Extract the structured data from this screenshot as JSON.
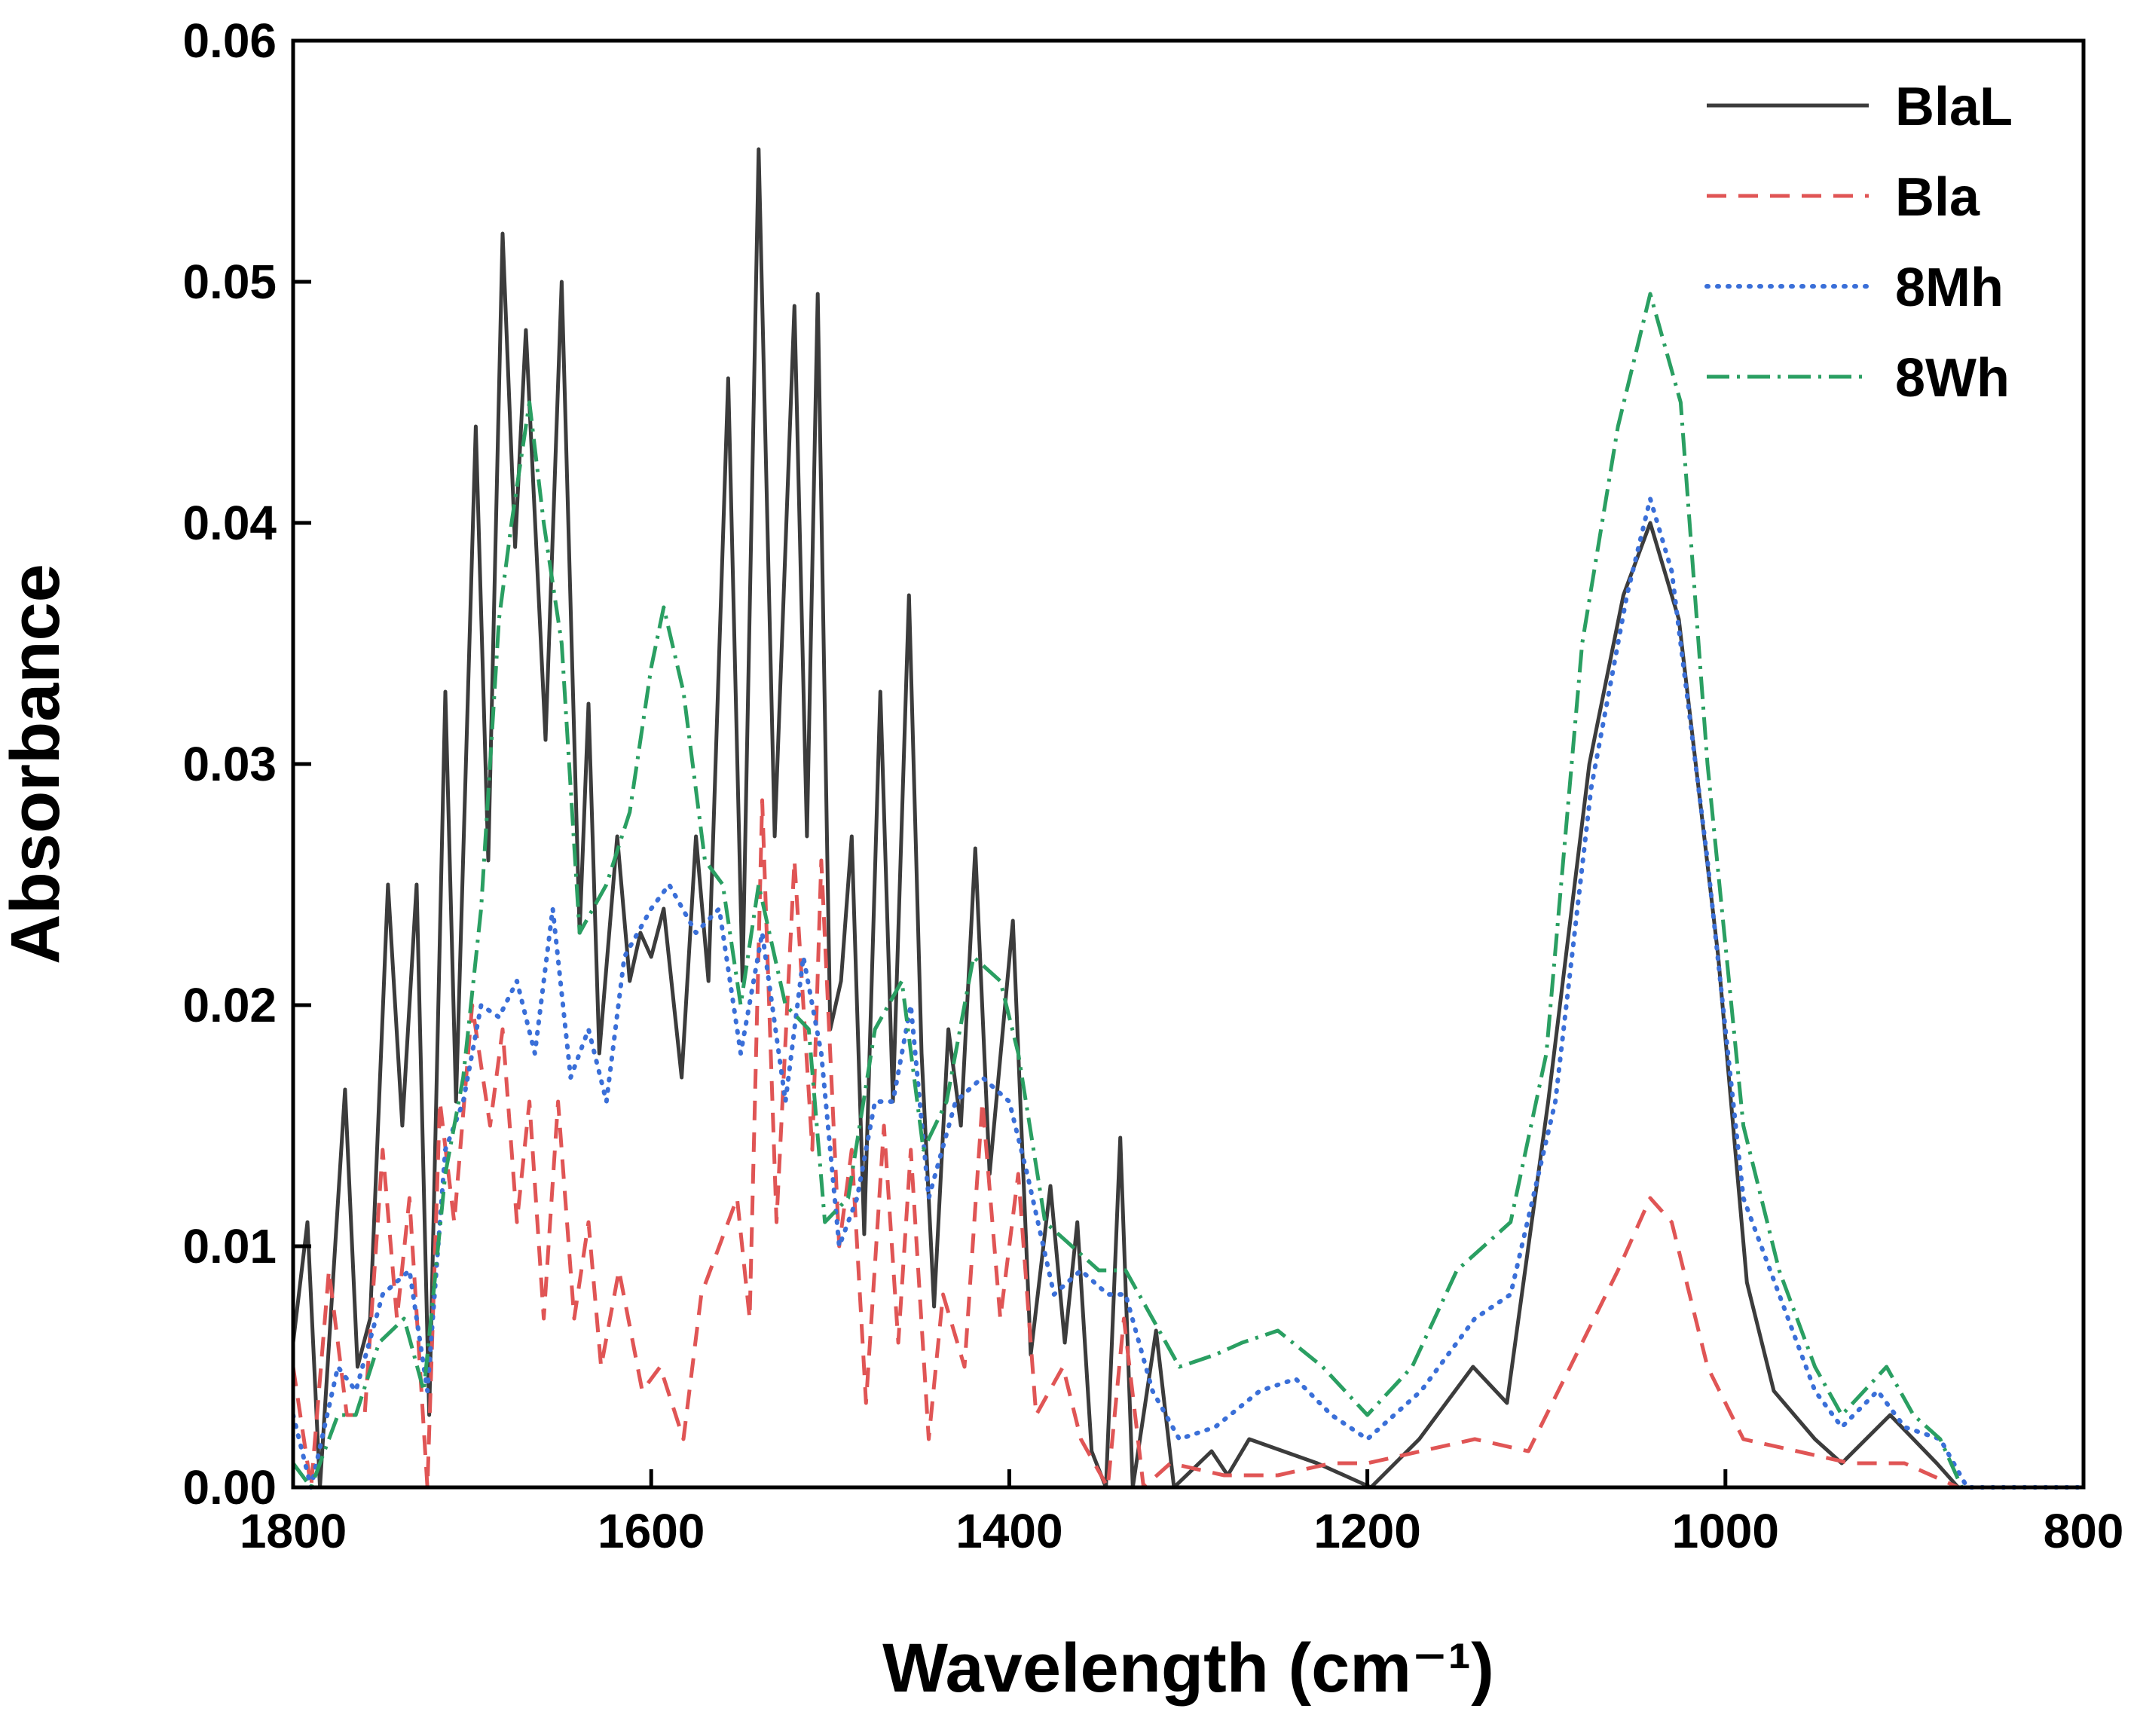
{
  "chart_data": {
    "type": "line",
    "x_label": "Wavelength (cm⁻¹)",
    "y_label": "Absorbance",
    "xlim": [
      1800,
      800
    ],
    "xticks": [
      1800,
      1600,
      1400,
      1200,
      1000,
      800
    ],
    "ylim": [
      0,
      0.06
    ],
    "yticks": [
      {
        "value": 0,
        "label": "0.00"
      },
      0.01,
      0.02,
      0.03,
      0.04,
      0.05,
      0.06
    ],
    "legend": "upper right",
    "series": [
      {
        "name": "BlaL",
        "color": "#3c3c3c",
        "dash": "solid",
        "x": [
          1800,
          1792,
          1785,
          1771,
          1764,
          1757,
          1747,
          1739,
          1731,
          1724,
          1715,
          1709,
          1698,
          1691,
          1683,
          1676,
          1670,
          1659,
          1650,
          1640,
          1635,
          1629,
          1619,
          1612,
          1606,
          1600,
          1593,
          1583,
          1575,
          1568,
          1557,
          1549,
          1540,
          1531,
          1520,
          1513,
          1507,
          1500,
          1494,
          1488,
          1481,
          1472,
          1465,
          1456,
          1449,
          1442,
          1434,
          1427,
          1419,
          1411,
          1398,
          1388,
          1377,
          1369,
          1362,
          1354,
          1346,
          1338,
          1331,
          1318,
          1308,
          1287,
          1278,
          1266,
          1247,
          1228,
          1198,
          1171,
          1141,
          1122,
          1099,
          1076,
          1057,
          1042,
          1026,
          1004,
          988,
          973,
          950,
          935,
          908,
          882,
          870,
          800
        ],
        "values": [
          0.006,
          0.011,
          0.0,
          0.0165,
          0.005,
          0.007,
          0.025,
          0.015,
          0.025,
          0.003,
          0.033,
          0.016,
          0.044,
          0.026,
          0.052,
          0.039,
          0.048,
          0.031,
          0.05,
          0.023,
          0.0325,
          0.018,
          0.027,
          0.021,
          0.023,
          0.022,
          0.024,
          0.017,
          0.027,
          0.021,
          0.046,
          0.021,
          0.0555,
          0.027,
          0.049,
          0.027,
          0.0495,
          0.019,
          0.021,
          0.027,
          0.0105,
          0.033,
          0.016,
          0.037,
          0.018,
          0.0075,
          0.019,
          0.015,
          0.0265,
          0.013,
          0.0235,
          0.0055,
          0.0125,
          0.006,
          0.011,
          0.0015,
          0.0,
          0.0145,
          0.0,
          0.0065,
          0.0,
          0.0015,
          0.0005,
          0.002,
          0.0015,
          0.001,
          0.0,
          0.002,
          0.005,
          0.0035,
          0.016,
          0.03,
          0.037,
          0.04,
          0.036,
          0.022,
          0.0085,
          0.004,
          0.002,
          0.001,
          0.003,
          0.001,
          0.0,
          0.0
        ]
      },
      {
        "name": "Bla",
        "color": "#e05555",
        "dash": "dashed",
        "x": [
          1800,
          1790,
          1780,
          1770,
          1760,
          1750,
          1742,
          1735,
          1725,
          1718,
          1710,
          1700,
          1690,
          1683,
          1675,
          1668,
          1660,
          1652,
          1643,
          1635,
          1628,
          1618,
          1605,
          1595,
          1582,
          1572,
          1562,
          1552,
          1545,
          1538,
          1530,
          1520,
          1510,
          1505,
          1495,
          1488,
          1480,
          1470,
          1462,
          1455,
          1445,
          1437,
          1425,
          1415,
          1405,
          1395,
          1385,
          1370,
          1360,
          1345,
          1336,
          1325,
          1310,
          1280,
          1250,
          1220,
          1200,
          1170,
          1140,
          1110,
          1080,
          1060,
          1042,
          1030,
          1010,
          990,
          960,
          930,
          900,
          870,
          800
        ],
        "values": [
          0.005,
          0.0,
          0.009,
          0.003,
          0.003,
          0.014,
          0.007,
          0.012,
          0.0,
          0.016,
          0.011,
          0.02,
          0.015,
          0.019,
          0.011,
          0.016,
          0.007,
          0.016,
          0.007,
          0.011,
          0.005,
          0.009,
          0.004,
          0.005,
          0.002,
          0.008,
          0.01,
          0.012,
          0.007,
          0.0285,
          0.011,
          0.026,
          0.014,
          0.026,
          0.01,
          0.014,
          0.0035,
          0.015,
          0.006,
          0.014,
          0.002,
          0.008,
          0.005,
          0.016,
          0.007,
          0.013,
          0.003,
          0.005,
          0.002,
          0.0,
          0.007,
          0.0,
          0.001,
          0.0005,
          0.0005,
          0.001,
          0.001,
          0.0015,
          0.002,
          0.0015,
          0.006,
          0.009,
          0.012,
          0.011,
          0.005,
          0.002,
          0.0015,
          0.001,
          0.001,
          0.0,
          0.0
        ]
      },
      {
        "name": "8Mh",
        "color": "#3a6fd8",
        "dash": "dotted",
        "x": [
          1800,
          1790,
          1775,
          1765,
          1750,
          1735,
          1725,
          1715,
          1705,
          1695,
          1685,
          1675,
          1665,
          1655,
          1645,
          1635,
          1625,
          1615,
          1600,
          1590,
          1575,
          1562,
          1550,
          1538,
          1525,
          1515,
          1505,
          1495,
          1485,
          1475,
          1465,
          1455,
          1445,
          1430,
          1415,
          1400,
          1390,
          1375,
          1360,
          1345,
          1335,
          1320,
          1305,
          1285,
          1260,
          1240,
          1220,
          1200,
          1170,
          1140,
          1120,
          1095,
          1075,
          1055,
          1042,
          1030,
          1010,
          990,
          970,
          950,
          935,
          915,
          900,
          880,
          865,
          800
        ],
        "values": [
          0.003,
          0.0,
          0.005,
          0.004,
          0.008,
          0.009,
          0.004,
          0.014,
          0.016,
          0.02,
          0.0195,
          0.021,
          0.018,
          0.024,
          0.017,
          0.019,
          0.016,
          0.022,
          0.024,
          0.025,
          0.023,
          0.024,
          0.018,
          0.023,
          0.016,
          0.022,
          0.018,
          0.01,
          0.012,
          0.016,
          0.016,
          0.02,
          0.012,
          0.016,
          0.017,
          0.016,
          0.013,
          0.008,
          0.009,
          0.008,
          0.008,
          0.004,
          0.002,
          0.0025,
          0.004,
          0.0045,
          0.003,
          0.002,
          0.004,
          0.007,
          0.008,
          0.016,
          0.029,
          0.037,
          0.041,
          0.038,
          0.026,
          0.012,
          0.008,
          0.004,
          0.0025,
          0.004,
          0.0025,
          0.002,
          0.0,
          0.0
        ]
      },
      {
        "name": "8Wh",
        "color": "#2a9f62",
        "dash": "dashdot",
        "x": [
          1800,
          1790,
          1775,
          1765,
          1752,
          1738,
          1727,
          1715,
          1705,
          1695,
          1685,
          1678,
          1668,
          1660,
          1650,
          1640,
          1625,
          1612,
          1600,
          1593,
          1582,
          1570,
          1560,
          1550,
          1540,
          1525,
          1512,
          1503,
          1490,
          1475,
          1460,
          1448,
          1435,
          1420,
          1405,
          1395,
          1380,
          1365,
          1350,
          1335,
          1320,
          1305,
          1285,
          1270,
          1250,
          1225,
          1200,
          1175,
          1150,
          1120,
          1100,
          1080,
          1060,
          1042,
          1025,
          1010,
          990,
          970,
          950,
          935,
          910,
          895,
          880,
          868,
          800
        ],
        "values": [
          0.001,
          0.0,
          0.003,
          0.003,
          0.006,
          0.007,
          0.004,
          0.013,
          0.017,
          0.024,
          0.036,
          0.04,
          0.045,
          0.04,
          0.035,
          0.023,
          0.025,
          0.028,
          0.034,
          0.0365,
          0.033,
          0.026,
          0.025,
          0.02,
          0.025,
          0.02,
          0.019,
          0.011,
          0.012,
          0.019,
          0.021,
          0.014,
          0.016,
          0.022,
          0.021,
          0.018,
          0.011,
          0.01,
          0.009,
          0.009,
          0.007,
          0.005,
          0.0055,
          0.006,
          0.0065,
          0.005,
          0.003,
          0.005,
          0.009,
          0.011,
          0.018,
          0.035,
          0.044,
          0.0495,
          0.045,
          0.03,
          0.015,
          0.009,
          0.005,
          0.003,
          0.005,
          0.003,
          0.002,
          0.0,
          0.0
        ]
      }
    ]
  }
}
